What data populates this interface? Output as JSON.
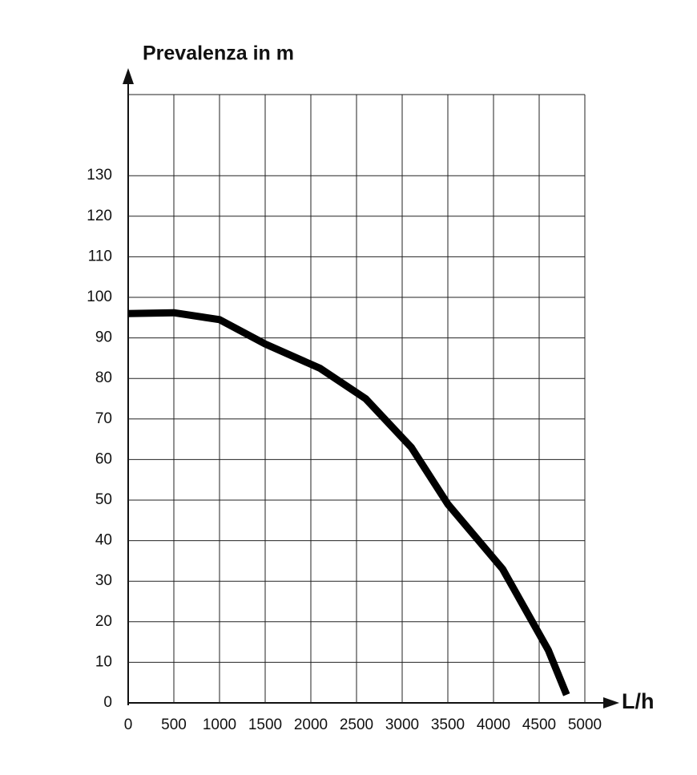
{
  "chart_data": {
    "type": "line",
    "y_label": "Prevalenza in m",
    "x_label": "L/h",
    "x": [
      0,
      500,
      1000,
      1500,
      2100,
      2600,
      3100,
      3500,
      4100,
      4600,
      4800
    ],
    "series": [
      {
        "color": "#000000",
        "values": [
          96,
          96.2,
          94.5,
          88.5,
          82.5,
          75,
          63,
          49,
          33,
          13,
          2
        ]
      }
    ],
    "xlim": [
      0,
      5000
    ],
    "xticks": [
      0,
      500,
      1000,
      1500,
      2000,
      2500,
      3000,
      3500,
      4000,
      4500,
      5000
    ],
    "ylim": [
      0,
      150
    ],
    "yticks": [
      0,
      10,
      20,
      30,
      40,
      50,
      60,
      70,
      80,
      90,
      100,
      110,
      120,
      130
    ],
    "grid": true
  }
}
